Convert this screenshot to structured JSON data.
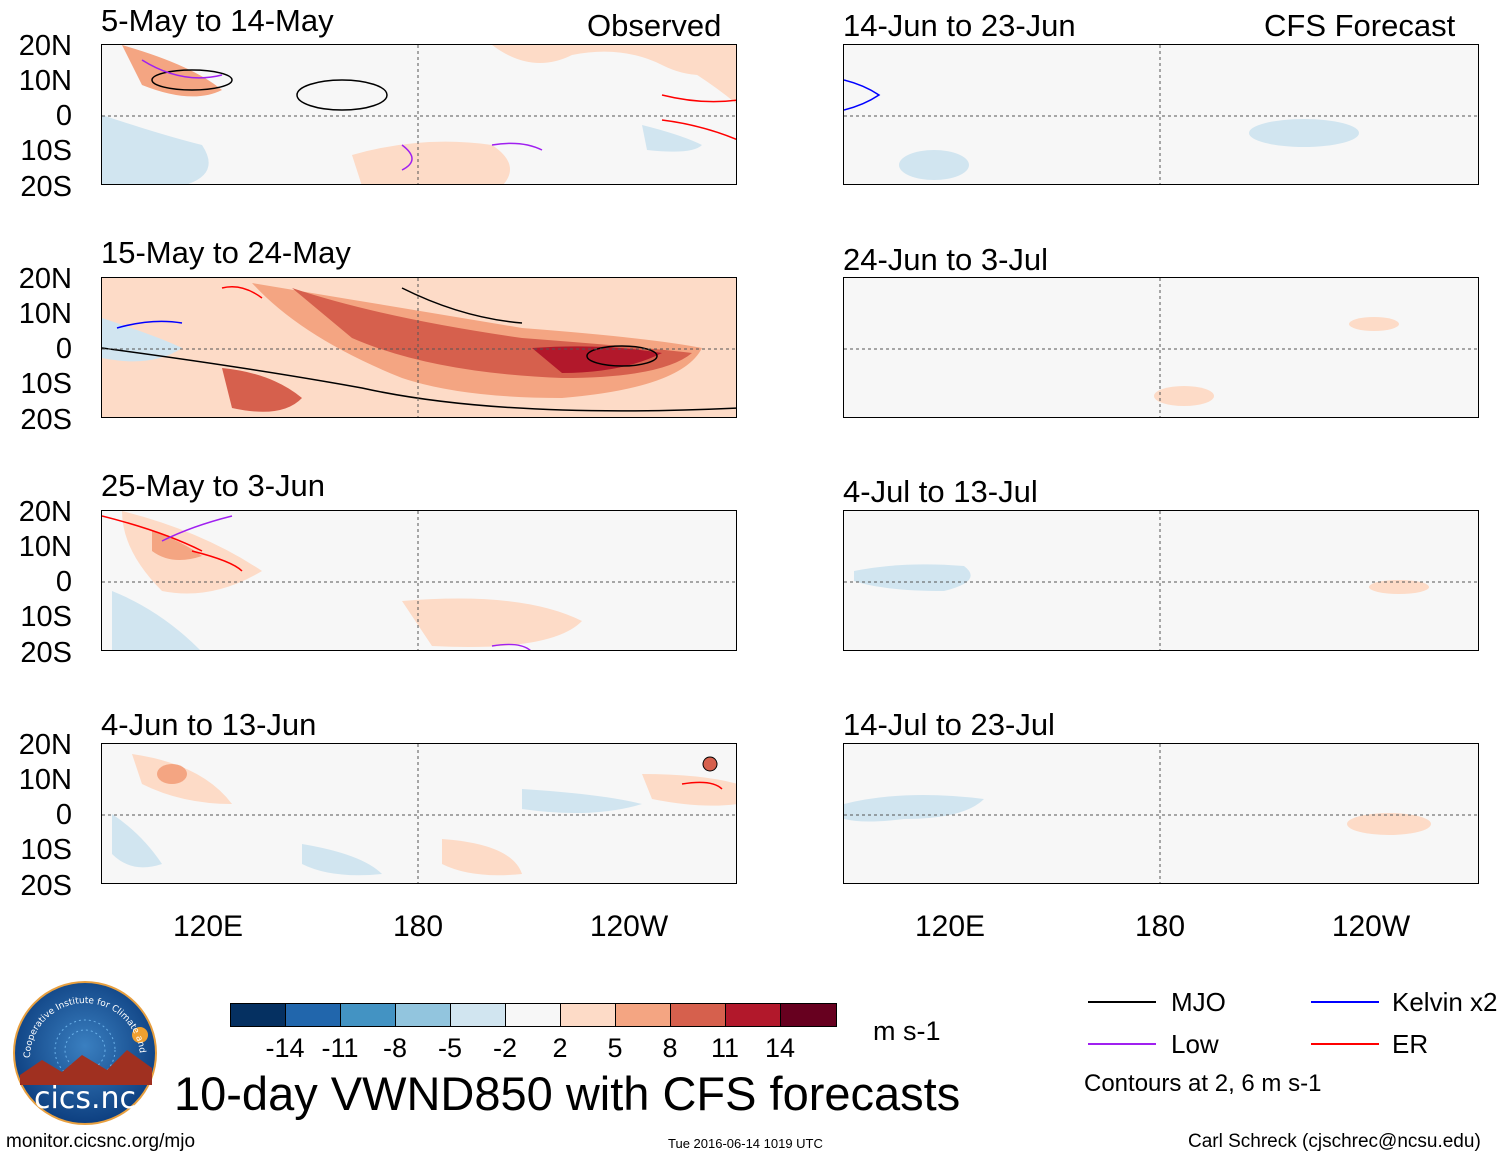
{
  "header": {
    "observed_label": "Observed",
    "forecast_label": "CFS Forecast"
  },
  "panels": [
    {
      "title": "5-May to 14-May",
      "column": "observed"
    },
    {
      "title": "15-May to 24-May",
      "column": "observed"
    },
    {
      "title": "25-May to 3-Jun",
      "column": "observed"
    },
    {
      "title": "4-Jun to 13-Jun",
      "column": "observed"
    },
    {
      "title": "14-Jun to 23-Jun",
      "column": "forecast"
    },
    {
      "title": "24-Jun to 3-Jul",
      "column": "forecast"
    },
    {
      "title": "4-Jul to 13-Jul",
      "column": "forecast"
    },
    {
      "title": "14-Jul to 23-Jul",
      "column": "forecast"
    }
  ],
  "axes": {
    "y_ticks": [
      "20N",
      "10N",
      "0",
      "10S",
      "20S"
    ],
    "x_ticks": [
      "120E",
      "180",
      "120W"
    ]
  },
  "colorbar": {
    "labels": [
      "-14",
      "-11",
      "-8",
      "-5",
      "-2",
      "2",
      "5",
      "8",
      "11",
      "14"
    ],
    "units": "m s-1",
    "colors": [
      "#053061",
      "#2166ac",
      "#4393c3",
      "#92c5de",
      "#d1e5f0",
      "#f7f7f7",
      "#fddbc7",
      "#f4a582",
      "#d6604d",
      "#b2182b",
      "#67001f"
    ]
  },
  "legend": {
    "mjo": "MJO",
    "low": "Low",
    "kelvin": "Kelvin x2",
    "er": "ER",
    "contours_note": "Contours at 2, 6 m s-1",
    "colors": {
      "mjo": "#000000",
      "low": "#a020f0",
      "kelvin": "#0000ff",
      "er": "#ff0000"
    }
  },
  "title": "10-day VWND850 with CFS forecasts",
  "logo_text": "cics.nc",
  "logo_ring_text": "Cooperative Institute for Climate and Satellites",
  "footer": {
    "url": "monitor.cicsnc.org/mjo",
    "timestamp": "Tue 2016-06-14 1019 UTC",
    "author": "Carl Schreck (cjschrec@ncsu.edu)"
  },
  "chart_data": {
    "type": "heatmap",
    "variable": "10-day mean 850-hPa meridional wind anomaly (VWND850)",
    "units": "m s-1",
    "lat_range": [
      -20,
      20
    ],
    "lon_range": [
      "90E",
      "90W"
    ],
    "color_levels": [
      -14,
      -11,
      -8,
      -5,
      -2,
      2,
      5,
      8,
      11,
      14
    ],
    "contour_levels": [
      2,
      6
    ],
    "contour_series": [
      "MJO",
      "Low",
      "Kelvin x2",
      "ER"
    ]
  }
}
